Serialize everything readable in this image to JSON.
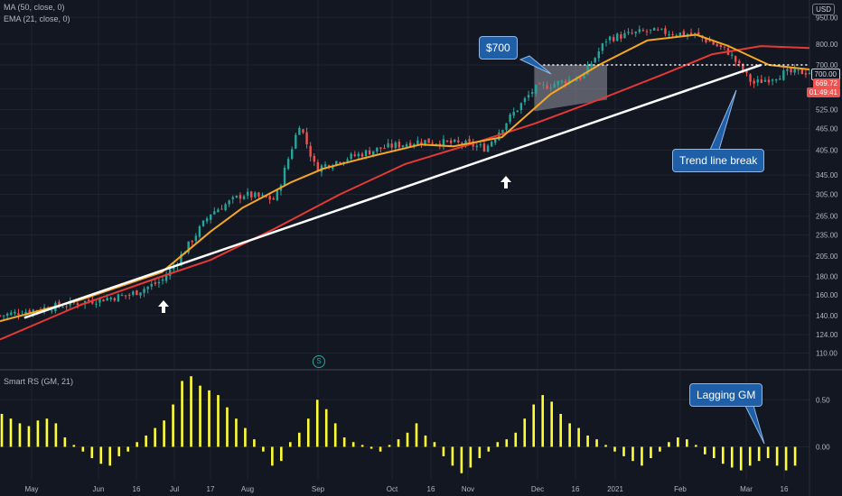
{
  "indicators": {
    "ma_label": "MA (50, close, 0)",
    "ema_label": "EMA (21, close, 0)",
    "rs_label": "Smart RS (GM, 21)"
  },
  "badges": {
    "currency": "USD",
    "symbol_marker": "S"
  },
  "annotations": {
    "price_callout": "$700",
    "trend_callout": "Trend line break",
    "rs_callout": "Lagging GM"
  },
  "price_tags": {
    "level": "700.00",
    "last_price": "669.72",
    "countdown": "01:49:41"
  },
  "colors": {
    "background": "#131722",
    "grid": "#1f2331",
    "up": "#26a69a",
    "down": "#ef5350",
    "ma50": "#e53935",
    "ema21": "#f5a623",
    "trendline": "#ffffff",
    "rs_bars": "#ffff33",
    "callout_bg": "#1e5fa8"
  },
  "chart_data": {
    "type": "candlestick",
    "log_scale": true,
    "grid": true,
    "x_ticks": [
      "May",
      "Jun",
      "16",
      "Jul",
      "17",
      "Aug",
      "Sep",
      "Oct",
      "16",
      "Nov",
      "Dec",
      "16",
      "2021",
      "Feb",
      "Mar",
      "16"
    ],
    "y_ticks": [
      110,
      124,
      140,
      160,
      180,
      205,
      235,
      265,
      305,
      345,
      405,
      465,
      525,
      600,
      700,
      800,
      950
    ],
    "y_range": [
      100,
      1050
    ],
    "close_series": [
      [
        0,
        140
      ],
      [
        0.08,
        150
      ],
      [
        0.16,
        160
      ],
      [
        0.2,
        175
      ],
      [
        0.22,
        200
      ],
      [
        0.26,
        270
      ],
      [
        0.3,
        305
      ],
      [
        0.34,
        295
      ],
      [
        0.37,
        480
      ],
      [
        0.39,
        360
      ],
      [
        0.42,
        380
      ],
      [
        0.47,
        410
      ],
      [
        0.52,
        430
      ],
      [
        0.58,
        420
      ],
      [
        0.6,
        410
      ],
      [
        0.63,
        500
      ],
      [
        0.66,
        600
      ],
      [
        0.72,
        650
      ],
      [
        0.75,
        830
      ],
      [
        0.8,
        870
      ],
      [
        0.86,
        850
      ],
      [
        0.9,
        760
      ],
      [
        0.93,
        620
      ],
      [
        0.97,
        665
      ],
      [
        1.0,
        670
      ]
    ],
    "ma50_series": [
      [
        0,
        120
      ],
      [
        0.1,
        150
      ],
      [
        0.2,
        180
      ],
      [
        0.26,
        200
      ],
      [
        0.34,
        245
      ],
      [
        0.42,
        305
      ],
      [
        0.5,
        370
      ],
      [
        0.58,
        420
      ],
      [
        0.66,
        480
      ],
      [
        0.74,
        560
      ],
      [
        0.82,
        660
      ],
      [
        0.88,
        750
      ],
      [
        0.94,
        790
      ],
      [
        1.0,
        780
      ]
    ],
    "ema21_series": [
      [
        0,
        135
      ],
      [
        0.1,
        155
      ],
      [
        0.2,
        185
      ],
      [
        0.26,
        240
      ],
      [
        0.3,
        280
      ],
      [
        0.36,
        330
      ],
      [
        0.4,
        360
      ],
      [
        0.46,
        390
      ],
      [
        0.52,
        420
      ],
      [
        0.56,
        415
      ],
      [
        0.62,
        440
      ],
      [
        0.68,
        580
      ],
      [
        0.74,
        700
      ],
      [
        0.8,
        820
      ],
      [
        0.86,
        850
      ],
      [
        0.9,
        790
      ],
      [
        0.95,
        700
      ],
      [
        1.0,
        680
      ]
    ],
    "trendline": {
      "start": [
        0.03,
        138
      ],
      "end": [
        0.94,
        700
      ]
    },
    "resistance_level": 700,
    "last_price": 669.72,
    "rs_panel": {
      "indicator": "Smart RS (GM, 21)",
      "y_ticks": [
        0.5,
        0
      ],
      "y_tick_labels": [
        "0.50",
        "0.00"
      ],
      "y_range": [
        -0.35,
        0.8
      ],
      "values": [
        0.35,
        0.3,
        0.25,
        0.22,
        0.28,
        0.3,
        0.25,
        0.1,
        0.02,
        -0.05,
        -0.12,
        -0.18,
        -0.2,
        -0.1,
        -0.05,
        0.05,
        0.12,
        0.2,
        0.28,
        0.45,
        0.7,
        0.75,
        0.65,
        0.6,
        0.55,
        0.42,
        0.3,
        0.2,
        0.08,
        -0.05,
        -0.2,
        -0.15,
        0.05,
        0.15,
        0.3,
        0.5,
        0.4,
        0.25,
        0.1,
        0.05,
        0.02,
        -0.02,
        -0.05,
        0.02,
        0.08,
        0.15,
        0.25,
        0.12,
        0.05,
        -0.1,
        -0.2,
        -0.28,
        -0.22,
        -0.12,
        -0.05,
        0.05,
        0.08,
        0.15,
        0.3,
        0.45,
        0.55,
        0.48,
        0.35,
        0.25,
        0.2,
        0.12,
        0.08,
        0.02,
        -0.05,
        -0.1,
        -0.15,
        -0.2,
        -0.12,
        -0.05,
        0.05,
        0.1,
        0.08,
        0.02,
        -0.08,
        -0.12,
        -0.18,
        -0.22,
        -0.25,
        -0.2,
        -0.15,
        -0.12,
        -0.2,
        -0.25,
        -0.2
      ]
    }
  }
}
